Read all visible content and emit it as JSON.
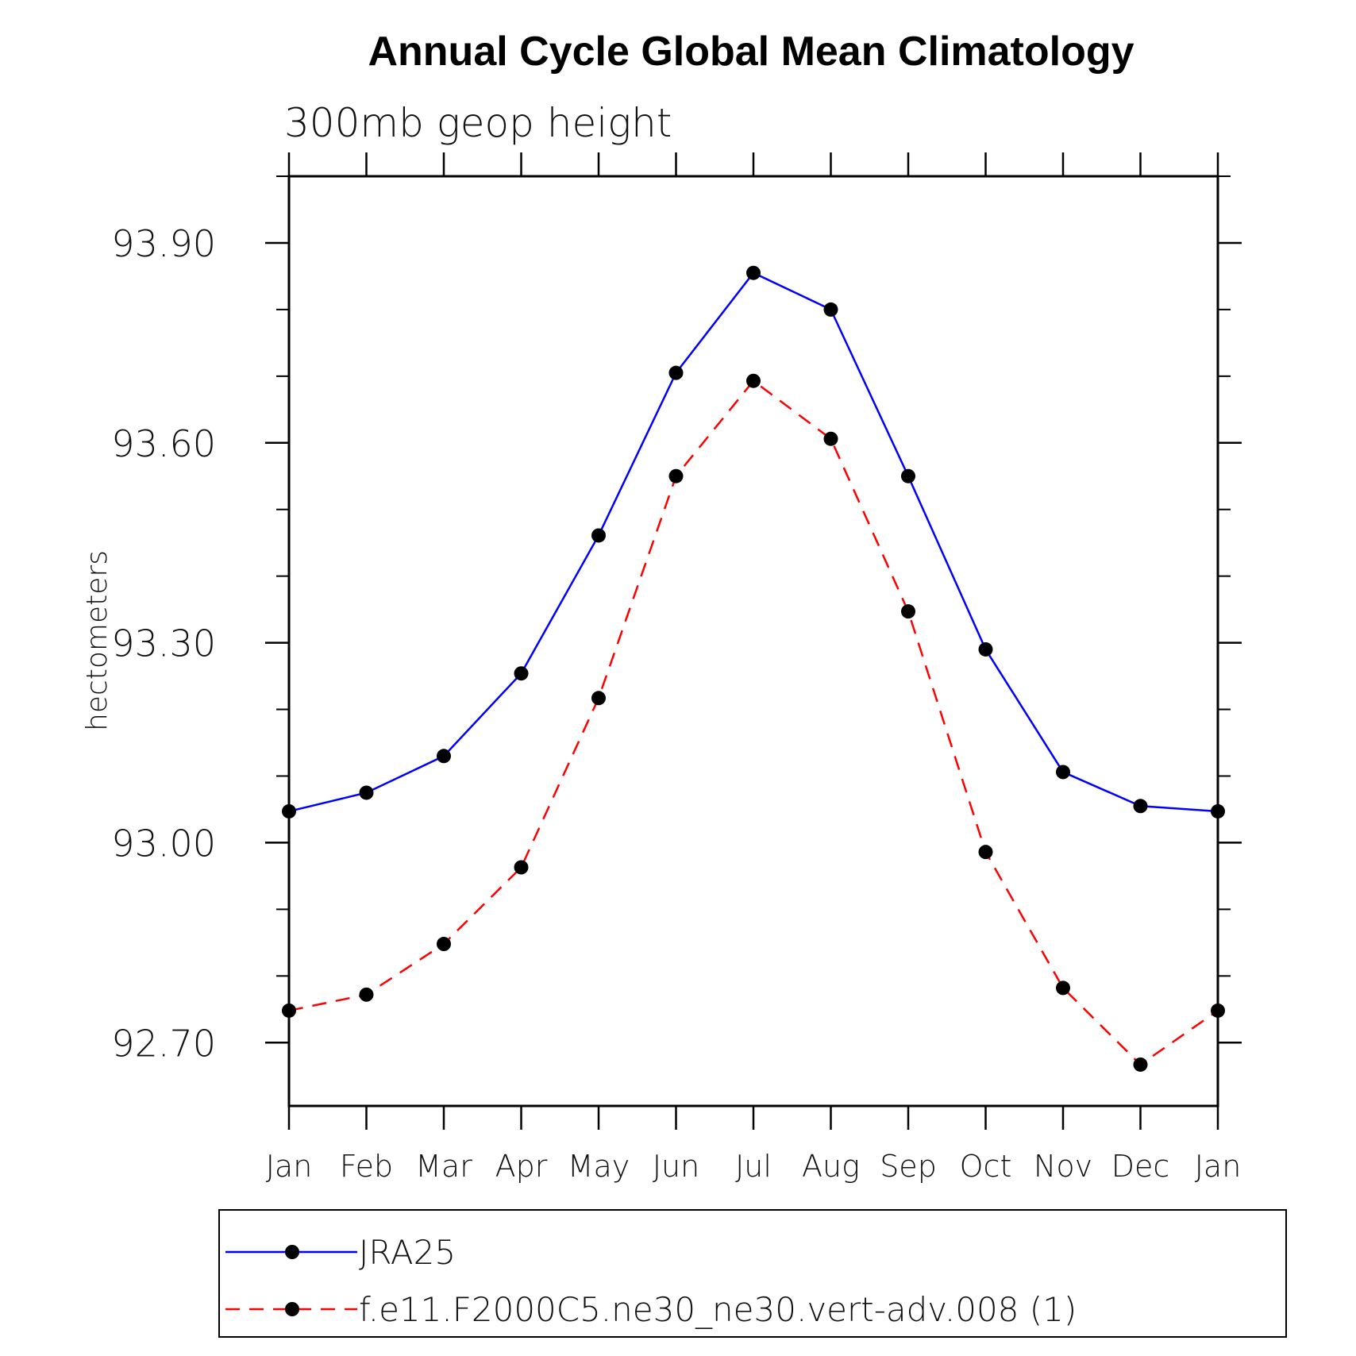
{
  "chart_data": {
    "type": "line",
    "title": "Annual Cycle Global Mean Climatology",
    "subtitle": "300mb geop height",
    "ylabel": "hectometers",
    "xlabel": "",
    "categories": [
      "Jan",
      "Feb",
      "Mar",
      "Apr",
      "May",
      "Jun",
      "Jul",
      "Aug",
      "Sep",
      "Oct",
      "Nov",
      "Dec",
      "Jan"
    ],
    "ylim": [
      92.605,
      94.0
    ],
    "yticks": [
      "93.90",
      "93.60",
      "93.30",
      "93.00",
      "92.70"
    ],
    "ytick_values": [
      93.9,
      93.6,
      93.3,
      93.0,
      92.7
    ],
    "yminor_step": 0.1,
    "grid": false,
    "legend_position": "bottom",
    "series": [
      {
        "name": "JRA25",
        "color": "#0000ff",
        "dash": "solid",
        "marker": "filled-circle",
        "values": [
          93.047,
          93.075,
          93.13,
          93.254,
          93.461,
          93.705,
          93.855,
          93.8,
          93.55,
          93.29,
          93.106,
          93.055,
          93.047
        ]
      },
      {
        "name": "f.e11.F2000C5.ne30_ne30.vert-adv.008 (1)",
        "color": "#ff0000",
        "dash": "dashed",
        "marker": "filled-circle",
        "values": [
          92.748,
          92.772,
          92.848,
          92.963,
          93.217,
          93.55,
          93.693,
          93.606,
          93.347,
          92.986,
          92.782,
          92.667,
          92.748
        ]
      }
    ]
  }
}
